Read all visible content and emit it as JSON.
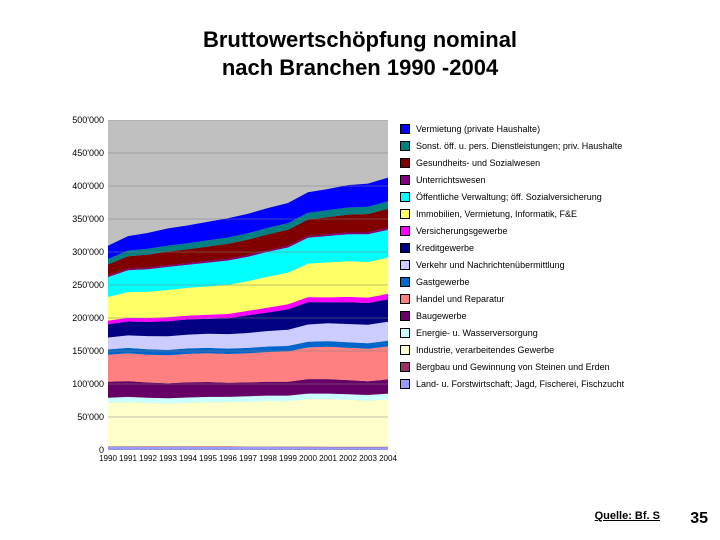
{
  "title_line1": "Bruttowertschöpfung nominal",
  "title_line2": "nach Branchen 1990 -2004",
  "source": "Quelle: Bf. S",
  "pagenum": "35",
  "chart": {
    "type": "area",
    "background_color": "#c0c0c0",
    "grid_color": "#808080",
    "title_fontsize": 22,
    "label_fontsize": 9,
    "years": [
      1990,
      1991,
      1992,
      1993,
      1994,
      1995,
      1996,
      1997,
      1998,
      1999,
      2000,
      2001,
      2002,
      2003,
      2004
    ],
    "ymin": 0,
    "ymax": 500000,
    "ytick_step": 50000,
    "yticks": [
      0,
      50000,
      100000,
      150000,
      200000,
      250000,
      300000,
      350000,
      400000,
      450000,
      500000
    ],
    "series": [
      {
        "name": "Land- u. Forstwirtschaft; Jagd, Fischerei, Fischzucht",
        "color": "#9999ff",
        "values": [
          4800,
          4700,
          4600,
          4700,
          4700,
          4600,
          4600,
          4500,
          4500,
          4400,
          4400,
          4300,
          4300,
          4200,
          4200
        ]
      },
      {
        "name": "Bergbau und Gewinnung von Steinen und Erden",
        "color": "#993366",
        "values": [
          700,
          700,
          700,
          700,
          700,
          700,
          700,
          700,
          700,
          700,
          700,
          700,
          700,
          700,
          700
        ]
      },
      {
        "name": "Industrie, verarbeitendes Gewerbe",
        "color": "#ffffcc",
        "values": [
          66000,
          67000,
          66000,
          65000,
          66000,
          67000,
          67000,
          68000,
          69000,
          69000,
          72000,
          72000,
          71000,
          70000,
          72000
        ]
      },
      {
        "name": "Energie- u. Wasserversorgung",
        "color": "#ccffff",
        "values": [
          7800,
          8000,
          8000,
          8100,
          8200,
          8200,
          8200,
          8300,
          8300,
          8300,
          8400,
          8400,
          8400,
          8400,
          8500
        ]
      },
      {
        "name": "Baugewerbe",
        "color": "#660066",
        "values": [
          24000,
          24000,
          23000,
          22500,
          23000,
          22500,
          21500,
          21000,
          21000,
          21000,
          22000,
          22000,
          21500,
          21000,
          21500
        ]
      },
      {
        "name": "Handel und Reparatur",
        "color": "#ff8080",
        "values": [
          41000,
          42000,
          42000,
          42500,
          43000,
          43500,
          43500,
          44000,
          45000,
          46000,
          48000,
          49000,
          49000,
          49000,
          50000
        ]
      },
      {
        "name": "Gastgewerbe",
        "color": "#0066cc",
        "values": [
          8200,
          8300,
          8300,
          8200,
          8300,
          8200,
          8100,
          8200,
          8300,
          8400,
          8600,
          8600,
          8500,
          8400,
          8500
        ]
      },
      {
        "name": "Verkehr und Nachrichtenübermittlung",
        "color": "#ccccff",
        "values": [
          18000,
          19000,
          20000,
          20500,
          21000,
          21500,
          22000,
          22500,
          23500,
          24500,
          26000,
          27000,
          27500,
          28000,
          29000
        ]
      },
      {
        "name": "Kreditgewerbe",
        "color": "#000080",
        "values": [
          20000,
          21000,
          21500,
          23000,
          23000,
          22500,
          24000,
          27000,
          28000,
          31000,
          34000,
          32000,
          33000,
          33000,
          34000
        ]
      },
      {
        "name": "Versicherungsgewerbe",
        "color": "#ff00ff",
        "values": [
          5500,
          5500,
          5700,
          6200,
          5800,
          6200,
          6500,
          6700,
          7500,
          7500,
          7500,
          7200,
          8000,
          8200,
          8300
        ]
      },
      {
        "name": "Immobilien, Vermietung, Informatik, F&E",
        "color": "#ffff66",
        "values": [
          36000,
          39000,
          40000,
          41000,
          42000,
          43000,
          44000,
          45000,
          47000,
          48000,
          51000,
          53000,
          54000,
          54000,
          55000
        ]
      },
      {
        "name": "Öffentliche Verwaltung; öff. Sozialversicherung",
        "color": "#00ffff",
        "values": [
          30000,
          33000,
          34000,
          35000,
          35000,
          36000,
          37000,
          37000,
          37500,
          38000,
          39000,
          40000,
          41000,
          42000,
          42000
        ]
      },
      {
        "name": "Unterrichtswesen",
        "color": "#800080",
        "values": [
          2200,
          2300,
          2300,
          2300,
          2400,
          2400,
          2400,
          2400,
          2500,
          2500,
          2600,
          2700,
          2700,
          2700,
          2800
        ]
      },
      {
        "name": "Gesundheits- und Sozialwesen",
        "color": "#800000",
        "values": [
          17000,
          19000,
          20000,
          21000,
          21000,
          22000,
          23000,
          23500,
          24000,
          24500,
          25000,
          26000,
          27000,
          28000,
          29000
        ]
      },
      {
        "name": "Sonst. öff. u. pers. Dienstleistungen; priv. Haushalte",
        "color": "#008080",
        "values": [
          8200,
          8600,
          8800,
          9000,
          9200,
          9400,
          9500,
          9600,
          9800,
          10000,
          10300,
          10600,
          10800,
          11000,
          11200
        ]
      },
      {
        "name": "Vermietung (private Haushalte)",
        "color": "#0000ff",
        "values": [
          20000,
          22000,
          24000,
          26000,
          27000,
          28000,
          29000,
          29500,
          30000,
          30500,
          31000,
          32000,
          34000,
          35000,
          36000
        ]
      }
    ]
  }
}
